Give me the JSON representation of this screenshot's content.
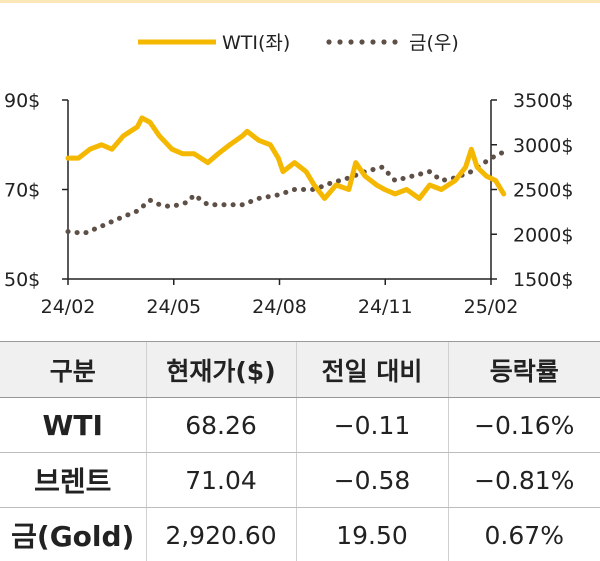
{
  "chart_data": {
    "type": "line",
    "legend_position": "top-center",
    "x_ticks": [
      "24/02",
      "24/05",
      "24/08",
      "24/11",
      "25/02"
    ],
    "y_left": {
      "ticks": [
        "50$",
        "70$",
        "90$"
      ],
      "range": [
        50,
        90
      ]
    },
    "y_right": {
      "ticks": [
        "1500$",
        "2000$",
        "2500$",
        "3000$",
        "3500$"
      ],
      "range": [
        1500,
        3500
      ]
    },
    "series": [
      {
        "name": "WTI(좌)",
        "axis": "left",
        "style": "solid",
        "color": "#F5B800",
        "x": [
          "2024-02-01",
          "2024-02-10",
          "2024-02-20",
          "2024-03-01",
          "2024-03-10",
          "2024-03-20",
          "2024-04-01",
          "2024-04-05",
          "2024-04-12",
          "2024-04-20",
          "2024-05-01",
          "2024-05-10",
          "2024-05-20",
          "2024-06-01",
          "2024-06-10",
          "2024-06-20",
          "2024-07-01",
          "2024-07-05",
          "2024-07-15",
          "2024-07-25",
          "2024-08-01",
          "2024-08-05",
          "2024-08-15",
          "2024-08-25",
          "2024-09-01",
          "2024-09-10",
          "2024-09-20",
          "2024-10-01",
          "2024-10-07",
          "2024-10-15",
          "2024-10-25",
          "2024-11-01",
          "2024-11-10",
          "2024-11-20",
          "2024-12-01",
          "2024-12-10",
          "2024-12-20",
          "2025-01-01",
          "2025-01-10",
          "2025-01-15",
          "2025-01-20",
          "2025-01-28",
          "2025-02-05",
          "2025-02-12"
        ],
        "values": [
          77,
          77,
          79,
          80,
          79,
          82,
          84,
          86,
          85,
          82,
          79,
          78,
          78,
          76,
          78,
          80,
          82,
          83,
          81,
          80,
          77,
          74,
          76,
          74,
          71,
          68,
          71,
          70,
          76,
          73,
          71,
          70,
          69,
          70,
          68,
          71,
          70,
          72,
          75,
          79,
          75,
          73,
          72,
          69
        ]
      },
      {
        "name": "금(우)",
        "axis": "right",
        "style": "dotted",
        "color": "#5E5046",
        "x": [
          "2024-02-01",
          "2024-02-15",
          "2024-03-01",
          "2024-03-15",
          "2024-04-01",
          "2024-04-12",
          "2024-04-22",
          "2024-05-01",
          "2024-05-15",
          "2024-05-20",
          "2024-06-01",
          "2024-06-15",
          "2024-07-01",
          "2024-07-15",
          "2024-08-01",
          "2024-08-15",
          "2024-09-01",
          "2024-09-15",
          "2024-10-01",
          "2024-10-15",
          "2024-10-30",
          "2024-11-10",
          "2024-11-25",
          "2024-12-10",
          "2024-12-20",
          "2025-01-01",
          "2025-01-15",
          "2025-02-01",
          "2025-02-12"
        ],
        "values": [
          2030,
          2010,
          2090,
          2170,
          2260,
          2380,
          2320,
          2310,
          2360,
          2440,
          2330,
          2330,
          2330,
          2400,
          2440,
          2500,
          2500,
          2570,
          2630,
          2700,
          2750,
          2600,
          2650,
          2700,
          2600,
          2630,
          2700,
          2850,
          2920
        ]
      }
    ]
  },
  "table": {
    "headers": [
      "구분",
      "현재가($)",
      "전일 대비",
      "등락률"
    ],
    "rows": [
      [
        "WTI",
        "68.26",
        "−0.11",
        "−0.16%"
      ],
      [
        "브렌트",
        "71.04",
        "−0.58",
        "−0.81%"
      ],
      [
        "금(Gold)",
        "2,920.60",
        "19.50",
        "0.67%"
      ]
    ]
  }
}
